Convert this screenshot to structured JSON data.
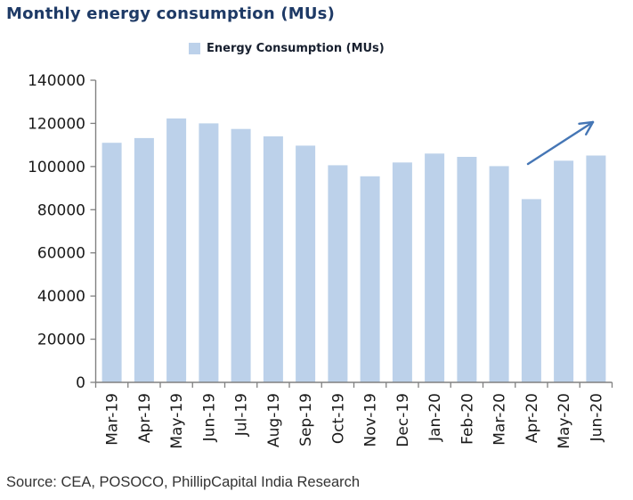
{
  "title": "Monthly energy consumption (MUs)",
  "legend": {
    "label": "Energy Consumption (MUs)",
    "swatch_icon": "square-swatch-icon"
  },
  "source_note": "Source: CEA, POSOCO, PhillipCapital India Research",
  "chart_data": {
    "type": "bar",
    "title": "Monthly energy consumption (MUs)",
    "legend_label": "Energy Consumption (MUs)",
    "legend_position": "top-center",
    "grid": false,
    "categories": [
      "Mar-19",
      "Apr-19",
      "May-19",
      "Jun-19",
      "Jul-19",
      "Aug-19",
      "Sep-19",
      "Oct-19",
      "Nov-19",
      "Dec-19",
      "Jan-20",
      "Feb-20",
      "Mar-20",
      "Apr-20",
      "May-20",
      "Jun-20"
    ],
    "values": [
      111000,
      113200,
      122300,
      120000,
      117400,
      114000,
      109700,
      100600,
      95500,
      101900,
      106000,
      104500,
      100200,
      84900,
      102700,
      105100
    ],
    "xlabel": "",
    "ylabel": "",
    "ylim": [
      0,
      140000
    ],
    "ytick_step": 20000,
    "xtick_rotation": 90,
    "bar_color": "#bcd1ea",
    "axis_color": "#808080",
    "tick_label_color": "#1a1a1a",
    "annotation": {
      "type": "arrow",
      "meaning": "upward recovery trend after Apr-20 dip",
      "color": "#4576b5"
    }
  }
}
